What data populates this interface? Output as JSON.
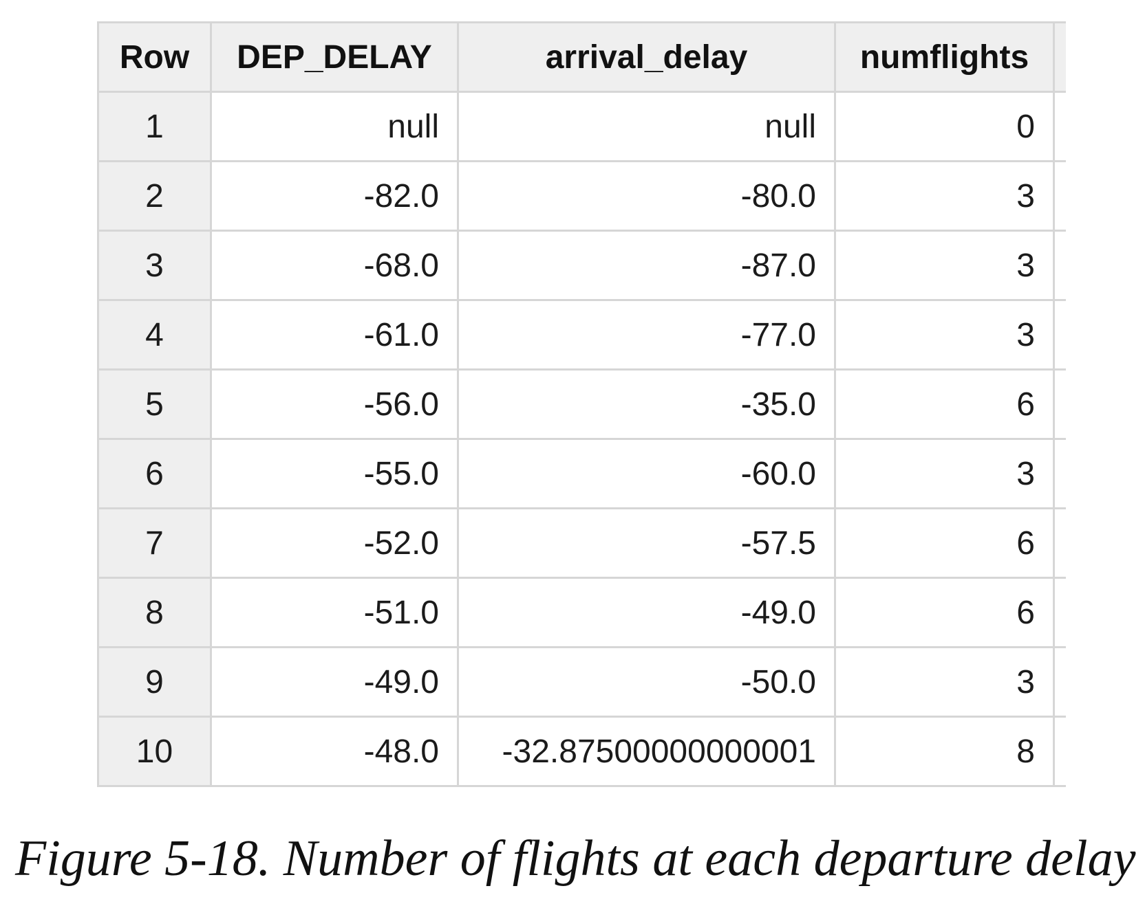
{
  "table": {
    "headers": [
      "Row",
      "DEP_DELAY",
      "arrival_delay",
      "numflights"
    ],
    "rows": [
      [
        "1",
        "null",
        "null",
        "0"
      ],
      [
        "2",
        "-82.0",
        "-80.0",
        "3"
      ],
      [
        "3",
        "-68.0",
        "-87.0",
        "3"
      ],
      [
        "4",
        "-61.0",
        "-77.0",
        "3"
      ],
      [
        "5",
        "-56.0",
        "-35.0",
        "6"
      ],
      [
        "6",
        "-55.0",
        "-60.0",
        "3"
      ],
      [
        "7",
        "-52.0",
        "-57.5",
        "6"
      ],
      [
        "8",
        "-51.0",
        "-49.0",
        "6"
      ],
      [
        "9",
        "-49.0",
        "-50.0",
        "3"
      ],
      [
        "10",
        "-48.0",
        "-32.87500000000001",
        "8"
      ]
    ]
  },
  "caption": "Figure 5-18. Number of flights at each departure delay"
}
